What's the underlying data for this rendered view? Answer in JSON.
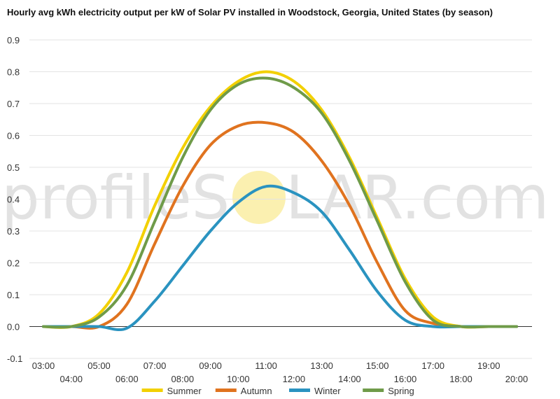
{
  "chart_data": {
    "type": "line",
    "title": "Hourly avg kWh electricity output per kW of Solar PV installed in Woodstock, Georgia, United States (by season)",
    "xlabel": "",
    "ylabel": "",
    "ylim": [
      -0.1,
      0.9
    ],
    "yticks": [
      "0.9",
      "0.8",
      "0.7",
      "0.6",
      "0.5",
      "0.4",
      "0.3",
      "0.2",
      "0.1",
      "0.0",
      "-0.1"
    ],
    "xlim": [
      "03:00",
      "20:00"
    ],
    "xticks": [
      "03:00",
      "04:00",
      "05:00",
      "06:00",
      "07:00",
      "08:00",
      "09:00",
      "10:00",
      "11:00",
      "12:00",
      "13:00",
      "14:00",
      "15:00",
      "16:00",
      "17:00",
      "18:00",
      "19:00",
      "20:00"
    ],
    "grid": "horizontal",
    "legend_position": "bottom",
    "x": [
      "03:00",
      "04:00",
      "05:00",
      "06:00",
      "07:00",
      "08:00",
      "09:00",
      "10:00",
      "11:00",
      "12:00",
      "13:00",
      "14:00",
      "15:00",
      "16:00",
      "17:00",
      "18:00",
      "19:00",
      "20:00"
    ],
    "series": [
      {
        "name": "Summer",
        "color": "#f2d000",
        "values": [
          0.0,
          0.0,
          0.04,
          0.17,
          0.38,
          0.56,
          0.69,
          0.77,
          0.8,
          0.77,
          0.68,
          0.53,
          0.34,
          0.15,
          0.03,
          0.0,
          0.0,
          0.0
        ]
      },
      {
        "name": "Autumn",
        "color": "#e0731f",
        "values": [
          0.0,
          0.0,
          0.0,
          0.07,
          0.26,
          0.44,
          0.57,
          0.63,
          0.64,
          0.61,
          0.52,
          0.38,
          0.2,
          0.05,
          0.01,
          0.0,
          0.0,
          0.0
        ]
      },
      {
        "name": "Winter",
        "color": "#2a93c0",
        "values": [
          0.0,
          0.0,
          0.0,
          -0.005,
          0.08,
          0.19,
          0.3,
          0.39,
          0.44,
          0.42,
          0.36,
          0.24,
          0.11,
          0.02,
          0.0,
          0.0,
          0.0,
          0.0
        ]
      },
      {
        "name": "Spring",
        "color": "#6f9b49",
        "values": [
          0.0,
          0.0,
          0.03,
          0.13,
          0.33,
          0.53,
          0.68,
          0.76,
          0.78,
          0.75,
          0.67,
          0.52,
          0.33,
          0.14,
          0.02,
          0.0,
          0.0,
          0.0
        ]
      }
    ]
  },
  "watermark": {
    "part1": "profileS",
    "part2": "LAR.com"
  },
  "colors": {
    "grid": "#e3e3e3",
    "zero_line": "#333333",
    "watermark_sun": "#fbf0b0"
  }
}
